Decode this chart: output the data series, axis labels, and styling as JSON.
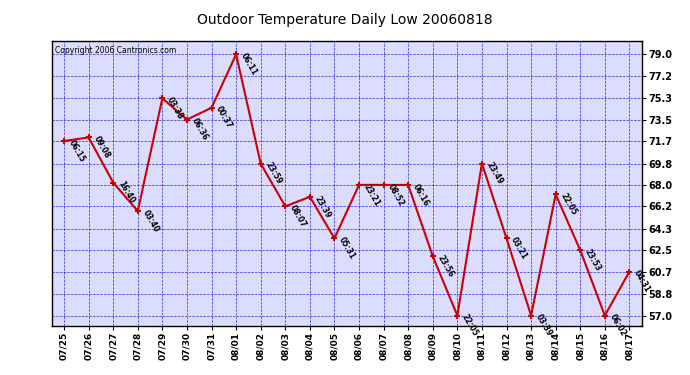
{
  "title": "Outdoor Temperature Daily Low 20060818",
  "copyright": "Copyright 2006 Cantronics.com",
  "background_color": "#ffffff",
  "plot_background": "#dcdcff",
  "line_color": "#cc0000",
  "grid_color": "#0000cc",
  "tick_label_color": "#000000",
  "label_color": "#000000",
  "dates": [
    "07/25",
    "07/26",
    "07/27",
    "07/28",
    "07/29",
    "07/30",
    "07/31",
    "08/01",
    "08/02",
    "08/03",
    "08/04",
    "08/05",
    "08/06",
    "08/07",
    "08/08",
    "08/09",
    "08/10",
    "08/11",
    "08/12",
    "08/13",
    "08/14",
    "08/15",
    "08/16",
    "08/17"
  ],
  "values": [
    71.7,
    72.0,
    68.2,
    65.8,
    75.3,
    73.5,
    74.5,
    79.0,
    69.8,
    66.2,
    67.0,
    63.5,
    68.0,
    68.0,
    68.0,
    62.0,
    57.0,
    69.8,
    63.5,
    57.0,
    67.2,
    62.5,
    57.0,
    60.7
  ],
  "point_labels": [
    "06:15",
    "09:08",
    "16:40",
    "03:40",
    "03:38",
    "06:36",
    "00:37",
    "06:11",
    "23:59",
    "08:07",
    "23:39",
    "05:31",
    "23:21",
    "08:52",
    "06:16",
    "23:56",
    "22:05",
    "23:49",
    "03:21",
    "03:39",
    "22:05",
    "23:53",
    "06:02",
    "04:31"
  ],
  "yticks": [
    57.0,
    58.8,
    60.7,
    62.5,
    64.3,
    66.2,
    68.0,
    69.8,
    71.7,
    73.5,
    75.3,
    77.2,
    79.0
  ],
  "ylim": [
    56.1,
    80.1
  ],
  "marker_size": 5,
  "linewidth": 1.5
}
